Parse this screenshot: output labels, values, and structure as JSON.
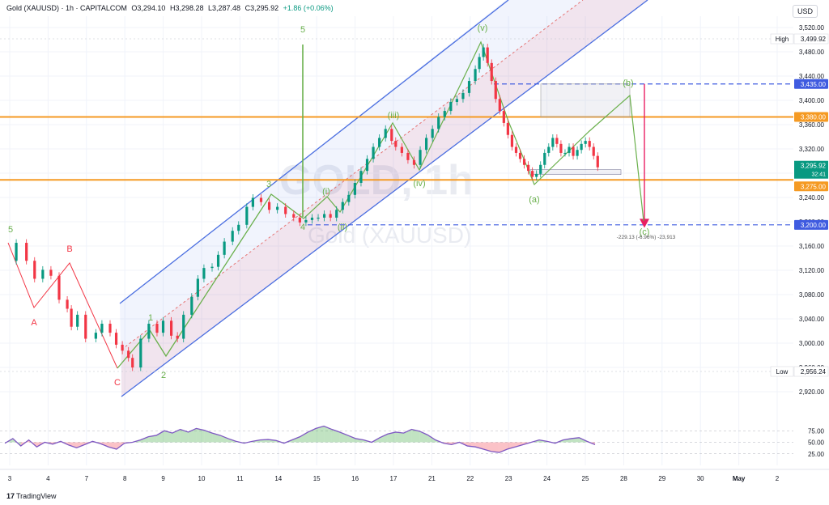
{
  "header": {
    "title": "Gold (XAUUSD) · 1h · CAPITALCOM",
    "open": "O3,294.10",
    "high": "H3,298.28",
    "low": "L3,287.48",
    "close": "C3,295.92",
    "change": "+1.86 (+0.06%)"
  },
  "currency_button": "USD",
  "watermark": {
    "main": "GOLD, 1h",
    "sub": "Gold (XAUUSD)"
  },
  "footer": {
    "logo": "TradingView"
  },
  "colors": {
    "up": "#089981",
    "down": "#f23645",
    "channel": "#4a6ee0",
    "level": "#f59a23",
    "target": "#3f5be0",
    "wave": "#6ab04c",
    "rsi_line": "#7e57c2",
    "arrow_down": "#e91e63"
  },
  "chart_data": {
    "type": "candlestick",
    "ylim": [
      2900,
      3540
    ],
    "y_ticks": [
      "3,520.00",
      "3,480.00",
      "3,440.00",
      "3,400.00",
      "3,360.00",
      "3,320.00",
      "3,280.00",
      "3,240.00",
      "3,200.00",
      "3,160.00",
      "3,120.00",
      "3,080.00",
      "3,040.00",
      "3,000.00",
      "2,960.00",
      "2,920.00"
    ],
    "x_ticks": [
      "3",
      "4",
      "7",
      "8",
      "9",
      "10",
      "11",
      "14",
      "15",
      "16",
      "17",
      "21",
      "22",
      "23",
      "24",
      "25",
      "28",
      "29",
      "30",
      "May",
      "2"
    ],
    "price_series": [
      [
        0,
        3140
      ],
      [
        0.4,
        3170
      ],
      [
        0.9,
        3140
      ],
      [
        1.3,
        3110
      ],
      [
        1.7,
        3125
      ],
      [
        2.1,
        3115
      ],
      [
        2.5,
        3075
      ],
      [
        2.9,
        3060
      ],
      [
        3.1,
        3030
      ],
      [
        3.4,
        3050
      ],
      [
        3.8,
        3010
      ],
      [
        4.3,
        3020
      ],
      [
        4.6,
        3035
      ],
      [
        5.0,
        3020
      ],
      [
        5.3,
        3000
      ],
      [
        5.6,
        2990
      ],
      [
        5.9,
        2978
      ],
      [
        6.1,
        2962
      ],
      [
        6.5,
        3010
      ],
      [
        6.9,
        3035
      ],
      [
        7.3,
        3020
      ],
      [
        7.6,
        3040
      ],
      [
        8.0,
        3015
      ],
      [
        8.3,
        3010
      ],
      [
        8.6,
        3050
      ],
      [
        9.0,
        3080
      ],
      [
        9.3,
        3110
      ],
      [
        9.6,
        3128
      ],
      [
        10.0,
        3130
      ],
      [
        10.3,
        3150
      ],
      [
        10.6,
        3172
      ],
      [
        11.0,
        3190
      ],
      [
        11.3,
        3200
      ],
      [
        11.7,
        3230
      ],
      [
        12.0,
        3245
      ],
      [
        12.4,
        3238
      ],
      [
        12.8,
        3225
      ],
      [
        13.2,
        3230
      ],
      [
        13.6,
        3218
      ],
      [
        14.0,
        3212
      ],
      [
        14.3,
        3204
      ],
      [
        14.6,
        3208
      ],
      [
        14.9,
        3212
      ],
      [
        15.2,
        3212
      ],
      [
        15.5,
        3218
      ],
      [
        15.8,
        3212
      ],
      [
        16.1,
        3225
      ],
      [
        16.4,
        3238
      ],
      [
        16.7,
        3250
      ],
      [
        17.0,
        3270
      ],
      [
        17.3,
        3290
      ],
      [
        17.6,
        3310
      ],
      [
        17.9,
        3330
      ],
      [
        18.2,
        3345
      ],
      [
        18.5,
        3360
      ],
      [
        18.8,
        3340
      ],
      [
        19.0,
        3330
      ],
      [
        19.3,
        3320
      ],
      [
        19.6,
        3308
      ],
      [
        19.9,
        3300
      ],
      [
        20.2,
        3325
      ],
      [
        20.5,
        3345
      ],
      [
        20.8,
        3360
      ],
      [
        21.1,
        3380
      ],
      [
        21.4,
        3390
      ],
      [
        21.7,
        3405
      ],
      [
        22.0,
        3410
      ],
      [
        22.3,
        3420
      ],
      [
        22.6,
        3440
      ],
      [
        22.9,
        3460
      ],
      [
        23.1,
        3480
      ],
      [
        23.3,
        3496
      ],
      [
        23.5,
        3470
      ],
      [
        23.7,
        3440
      ],
      [
        23.9,
        3410
      ],
      [
        24.1,
        3390
      ],
      [
        24.3,
        3370
      ],
      [
        24.5,
        3350
      ],
      [
        24.7,
        3330
      ],
      [
        24.9,
        3320
      ],
      [
        25.1,
        3310
      ],
      [
        25.3,
        3300
      ],
      [
        25.5,
        3290
      ],
      [
        25.7,
        3280
      ],
      [
        25.9,
        3285
      ],
      [
        26.1,
        3300
      ],
      [
        26.3,
        3320
      ],
      [
        26.5,
        3330
      ],
      [
        26.7,
        3345
      ],
      [
        26.9,
        3335
      ],
      [
        27.1,
        3320
      ],
      [
        27.3,
        3320
      ],
      [
        27.5,
        3330
      ],
      [
        27.7,
        3315
      ],
      [
        27.9,
        3325
      ],
      [
        28.1,
        3335
      ],
      [
        28.3,
        3340
      ],
      [
        28.5,
        3330
      ],
      [
        28.7,
        3315
      ],
      [
        28.9,
        3296
      ]
    ],
    "annotations": [
      {
        "label": "5",
        "color": "#6ab04c"
      },
      {
        "label": "A",
        "color": "#f23645"
      },
      {
        "label": "B",
        "color": "#f23645"
      },
      {
        "label": "C",
        "color": "#f23645"
      },
      {
        "label": "1",
        "color": "#6ab04c"
      },
      {
        "label": "2",
        "color": "#6ab04c"
      },
      {
        "label": "3",
        "color": "#6ab04c"
      },
      {
        "label": "4",
        "color": "#6ab04c"
      },
      {
        "label": "5",
        "color": "#6ab04c"
      },
      {
        "label": "(i)",
        "color": "#6ab04c"
      },
      {
        "label": "(ii)",
        "color": "#6ab04c"
      },
      {
        "label": "(iii)",
        "color": "#6ab04c"
      },
      {
        "label": "(iv)",
        "color": "#6ab04c"
      },
      {
        "label": "(v)",
        "color": "#6ab04c"
      },
      {
        "label": "(a)",
        "color": "#6ab04c"
      },
      {
        "label": "(b)",
        "color": "#6ab04c"
      },
      {
        "label": "(c)",
        "color": "#6ab04c"
      }
    ],
    "levels": [
      {
        "value": 3380,
        "label": "3,380.00",
        "color": "#f59a23"
      },
      {
        "value": 3275,
        "label": "3,275.00",
        "color": "#f59a23"
      },
      {
        "value": 3435,
        "label": "3,435.00",
        "color": "#3f5be0"
      },
      {
        "value": 3200,
        "label": "3,200.00",
        "color": "#3f5be0"
      }
    ],
    "high_label": {
      "text": "High",
      "value": "3,499.92"
    },
    "low_label": {
      "text": "Low",
      "value": "2,956.24"
    },
    "current_price": {
      "value": "3,295.92",
      "countdown": "32:41"
    },
    "measure_text": "-229.13 (-6.96%) -23,913",
    "rsi": {
      "ticks": [
        "75.00",
        "50.00",
        "25.00"
      ],
      "values": [
        48,
        58,
        42,
        55,
        40,
        50,
        46,
        52,
        44,
        38,
        45,
        52,
        47,
        40,
        35,
        48,
        50,
        55,
        62,
        65,
        75,
        70,
        78,
        72,
        80,
        76,
        70,
        65,
        58,
        52,
        48,
        52,
        55,
        56,
        54,
        48,
        55,
        62,
        72,
        80,
        85,
        78,
        72,
        65,
        58,
        55,
        50,
        60,
        68,
        72,
        70,
        78,
        74,
        66,
        55,
        48,
        45,
        50,
        42,
        40,
        35,
        30,
        28,
        35,
        40,
        45,
        50,
        55,
        52,
        48,
        55,
        58,
        60,
        52,
        45
      ]
    }
  }
}
